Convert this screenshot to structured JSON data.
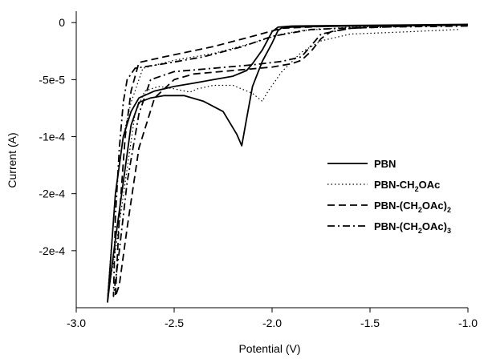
{
  "chart_data": {
    "type": "line",
    "title": "",
    "xlabel": "Potential (V)",
    "ylabel": "Current (A)",
    "xlim": [
      -3.0,
      -1.0
    ],
    "ylim": [
      -0.00025,
      1e-05
    ],
    "xticks": [
      -3.0,
      -2.5,
      -2.0,
      -1.5,
      -1.0
    ],
    "xtick_labels": [
      "-3.0",
      "-2.5",
      "-2.0",
      "-1.5",
      "-1.0"
    ],
    "yticks": [
      0,
      -5e-05,
      -0.0001,
      -0.00015,
      -0.0002
    ],
    "ytick_labels": [
      "0",
      "-5e-5",
      "-1e-4",
      "-2e-4",
      "-2e-4"
    ],
    "grid": false,
    "legend_position": "right",
    "series": [
      {
        "name": "PBN",
        "name_parts": [
          [
            "PBN",
            ""
          ]
        ],
        "style": "solid",
        "points": [
          [
            -1.0,
            -2e-06
          ],
          [
            -1.3,
            -2.5e-06
          ],
          [
            -1.6,
            -3e-06
          ],
          [
            -1.8,
            -3.5e-06
          ],
          [
            -1.9,
            -4e-06
          ],
          [
            -1.95,
            -4.5e-06
          ],
          [
            -1.97,
            -7e-06
          ],
          [
            -2.0,
            -1.8e-05
          ],
          [
            -2.05,
            -3.4e-05
          ],
          [
            -2.1,
            -5.6e-05
          ],
          [
            -2.13,
            -8.4e-05
          ],
          [
            -2.155,
            -0.000108
          ],
          [
            -2.18,
            -9.8e-05
          ],
          [
            -2.25,
            -7.8e-05
          ],
          [
            -2.35,
            -6.9e-05
          ],
          [
            -2.45,
            -6.4e-05
          ],
          [
            -2.55,
            -6.4e-05
          ],
          [
            -2.62,
            -6.6e-05
          ],
          [
            -2.68,
            -7e-05
          ],
          [
            -2.72,
            -9e-05
          ],
          [
            -2.76,
            -0.00014
          ],
          [
            -2.8,
            -0.00019
          ],
          [
            -2.83,
            -0.00023
          ],
          [
            -2.84,
            -0.000245
          ],
          [
            -2.8,
            -0.00015
          ],
          [
            -2.76,
            -0.0001
          ],
          [
            -2.72,
            -7.8e-05
          ],
          [
            -2.68,
            -6.6e-05
          ],
          [
            -2.6,
            -6e-05
          ],
          [
            -2.5,
            -5.6e-05
          ],
          [
            -2.4,
            -5.3e-05
          ],
          [
            -2.3,
            -5e-05
          ],
          [
            -2.2,
            -4.7e-05
          ],
          [
            -2.13,
            -4.2e-05
          ],
          [
            -2.1,
            -3.6e-05
          ],
          [
            -2.05,
            -2.4e-05
          ],
          [
            -2.0,
            -8e-06
          ],
          [
            -1.97,
            -4e-06
          ],
          [
            -1.9,
            -3e-06
          ],
          [
            -1.6,
            -2.5e-06
          ],
          [
            -1.3,
            -2e-06
          ],
          [
            -1.0,
            -1.5e-06
          ]
        ]
      },
      {
        "name": "PBN-CH2OAc",
        "name_parts": [
          [
            "PBN-CH",
            ""
          ],
          [
            "2",
            "sub"
          ],
          [
            "OAc",
            ""
          ]
        ],
        "style": "dotted",
        "points": [
          [
            -1.05,
            -6e-06
          ],
          [
            -1.3,
            -8e-06
          ],
          [
            -1.6,
            -1e-05
          ],
          [
            -1.75,
            -1.6e-05
          ],
          [
            -1.85,
            -2.6e-05
          ],
          [
            -1.95,
            -4.3e-05
          ],
          [
            -2.02,
            -6e-05
          ],
          [
            -2.05,
            -6.9e-05
          ],
          [
            -2.1,
            -6.2e-05
          ],
          [
            -2.2,
            -5.5e-05
          ],
          [
            -2.3,
            -5.5e-05
          ],
          [
            -2.38,
            -5.8e-05
          ],
          [
            -2.42,
            -6.1e-05
          ],
          [
            -2.5,
            -5.8e-05
          ],
          [
            -2.58,
            -5.6e-05
          ],
          [
            -2.65,
            -6e-05
          ],
          [
            -2.7,
            -8e-05
          ],
          [
            -2.75,
            -0.00014
          ],
          [
            -2.8,
            -0.0002
          ],
          [
            -2.84,
            -0.00024
          ],
          [
            -2.8,
            -0.00015
          ],
          [
            -2.76,
            -0.0001
          ],
          [
            -2.72,
            -7e-05
          ],
          [
            -2.66,
            -4e-05
          ],
          [
            -2.5,
            -3.3e-05
          ],
          [
            -2.3,
            -2.7e-05
          ],
          [
            -2.1,
            -1.8e-05
          ],
          [
            -1.95,
            -1e-05
          ],
          [
            -1.85,
            -7e-06
          ],
          [
            -1.6,
            -4e-06
          ],
          [
            -1.3,
            -3e-06
          ],
          [
            -1.0,
            -2e-06
          ]
        ]
      },
      {
        "name": "PBN-(CH2OAc)2",
        "name_parts": [
          [
            "PBN-(CH",
            ""
          ],
          [
            "2",
            "sub"
          ],
          [
            "OAc)",
            ""
          ],
          [
            "2",
            "sub"
          ]
        ],
        "style": "dashed",
        "points": [
          [
            -1.0,
            -2e-06
          ],
          [
            -1.3,
            -3e-06
          ],
          [
            -1.6,
            -5e-06
          ],
          [
            -1.7,
            -8e-06
          ],
          [
            -1.75,
            -1.4e-05
          ],
          [
            -1.8,
            -2.5e-05
          ],
          [
            -1.85,
            -3.3e-05
          ],
          [
            -1.9,
            -3.6e-05
          ],
          [
            -2.0,
            -3.9e-05
          ],
          [
            -2.2,
            -4.2e-05
          ],
          [
            -2.4,
            -4.5e-05
          ],
          [
            -2.5,
            -5e-05
          ],
          [
            -2.6,
            -6.6e-05
          ],
          [
            -2.68,
            -0.00011
          ],
          [
            -2.74,
            -0.00018
          ],
          [
            -2.78,
            -0.00023
          ],
          [
            -2.8,
            -0.00024
          ],
          [
            -2.78,
            -0.00017
          ],
          [
            -2.75,
            -0.0001
          ],
          [
            -2.72,
            -6e-05
          ],
          [
            -2.68,
            -3.5e-05
          ],
          [
            -2.55,
            -3e-05
          ],
          [
            -2.3,
            -2.1e-05
          ],
          [
            -2.1,
            -1.2e-05
          ],
          [
            -1.95,
            -5e-06
          ],
          [
            -1.7,
            -3e-06
          ],
          [
            -1.3,
            -2.5e-06
          ],
          [
            -1.0,
            -2e-06
          ]
        ]
      },
      {
        "name": "PBN-(CH2OAc)3",
        "name_parts": [
          [
            "PBN-(CH",
            ""
          ],
          [
            "2",
            "sub"
          ],
          [
            "OAc)",
            ""
          ],
          [
            "3",
            "sub"
          ]
        ],
        "style": "dashdot",
        "points": [
          [
            -1.0,
            -2e-06
          ],
          [
            -1.3,
            -3e-06
          ],
          [
            -1.6,
            -5e-06
          ],
          [
            -1.75,
            -1e-05
          ],
          [
            -1.8,
            -2e-05
          ],
          [
            -1.85,
            -3e-05
          ],
          [
            -1.95,
            -3.4e-05
          ],
          [
            -2.1,
            -3.7e-05
          ],
          [
            -2.3,
            -4e-05
          ],
          [
            -2.5,
            -4.3e-05
          ],
          [
            -2.62,
            -5e-05
          ],
          [
            -2.68,
            -8e-05
          ],
          [
            -2.74,
            -0.00014
          ],
          [
            -2.78,
            -0.0002
          ],
          [
            -2.81,
            -0.00024
          ],
          [
            -2.8,
            -0.00017
          ],
          [
            -2.78,
            -0.00011
          ],
          [
            -2.76,
            -7e-05
          ],
          [
            -2.74,
            -5e-05
          ],
          [
            -2.7,
            -4e-05
          ],
          [
            -2.55,
            -3.6e-05
          ],
          [
            -2.35,
            -3e-05
          ],
          [
            -2.15,
            -2.1e-05
          ],
          [
            -2.0,
            -1.2e-05
          ],
          [
            -1.8,
            -6e-06
          ],
          [
            -1.5,
            -4e-06
          ],
          [
            -1.0,
            -3e-06
          ]
        ]
      }
    ]
  }
}
